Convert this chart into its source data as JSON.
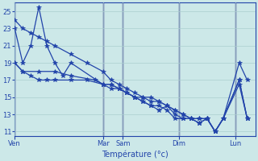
{
  "xlabel": "Température (°c)",
  "background_color": "#cce8e8",
  "grid_color": "#aacfcf",
  "line_color": "#2244aa",
  "vline_color": "#333388",
  "ylim": [
    10.5,
    26.0
  ],
  "yticks": [
    11,
    13,
    15,
    17,
    19,
    21,
    23,
    25
  ],
  "xlim": [
    0,
    30
  ],
  "day_labels": [
    "Ven",
    "Mar",
    "Sam",
    "Dim",
    "Lun"
  ],
  "day_x": [
    0,
    11,
    13.5,
    20.5,
    27.5
  ],
  "vline_x": [
    0,
    11,
    13.5,
    20.5,
    27.5
  ],
  "series": [
    {
      "x": [
        0,
        1,
        2,
        3,
        4,
        5,
        7,
        9,
        11,
        12,
        13,
        14,
        15,
        16,
        17,
        18,
        19,
        20,
        21,
        22,
        23,
        24,
        25,
        26,
        28,
        29
      ],
      "y": [
        24,
        23,
        22.5,
        22,
        21.5,
        21,
        20,
        19,
        18,
        17,
        16.5,
        16,
        15.5,
        15,
        15,
        14.5,
        14,
        13.5,
        13,
        12.5,
        12,
        12.5,
        11,
        12.5,
        17,
        12.5
      ]
    },
    {
      "x": [
        0,
        1,
        2,
        3,
        4,
        5,
        7,
        9,
        11,
        12,
        13,
        14,
        15,
        16,
        17,
        18,
        19,
        20,
        21,
        22,
        23,
        24,
        25,
        26,
        28,
        29
      ],
      "y": [
        19,
        18,
        17.5,
        17,
        17,
        17,
        17,
        17,
        16.5,
        16,
        16,
        15.5,
        15,
        15,
        14.5,
        14.5,
        14,
        13.5,
        13,
        12.5,
        12.5,
        12.5,
        11,
        12.5,
        16.5,
        12.5
      ]
    },
    {
      "x": [
        0,
        1,
        3,
        5,
        7,
        10,
        11,
        12,
        13,
        14,
        15,
        16,
        17,
        18,
        19,
        20,
        21,
        22,
        23,
        24,
        25,
        26,
        28,
        29
      ],
      "y": [
        19,
        18,
        18,
        18,
        17.5,
        17,
        16.5,
        16.5,
        16,
        15.5,
        15,
        14.5,
        14,
        13.5,
        14,
        13,
        12.5,
        12.5,
        12.5,
        12.5,
        11,
        12.5,
        19,
        17
      ]
    },
    {
      "x": [
        0,
        1,
        2,
        3,
        4,
        5,
        6,
        7,
        11,
        12,
        13,
        14,
        15,
        16,
        17,
        18,
        19,
        20,
        21,
        22,
        23,
        24,
        25,
        26,
        28,
        29
      ],
      "y": [
        23,
        19,
        21,
        25.5,
        21,
        19,
        17.5,
        19,
        16.5,
        16.5,
        16,
        15.5,
        15,
        14.5,
        14,
        14,
        13.5,
        12.5,
        12.5,
        12.5,
        12,
        12.5,
        11,
        12.5,
        17,
        12.5
      ]
    }
  ]
}
